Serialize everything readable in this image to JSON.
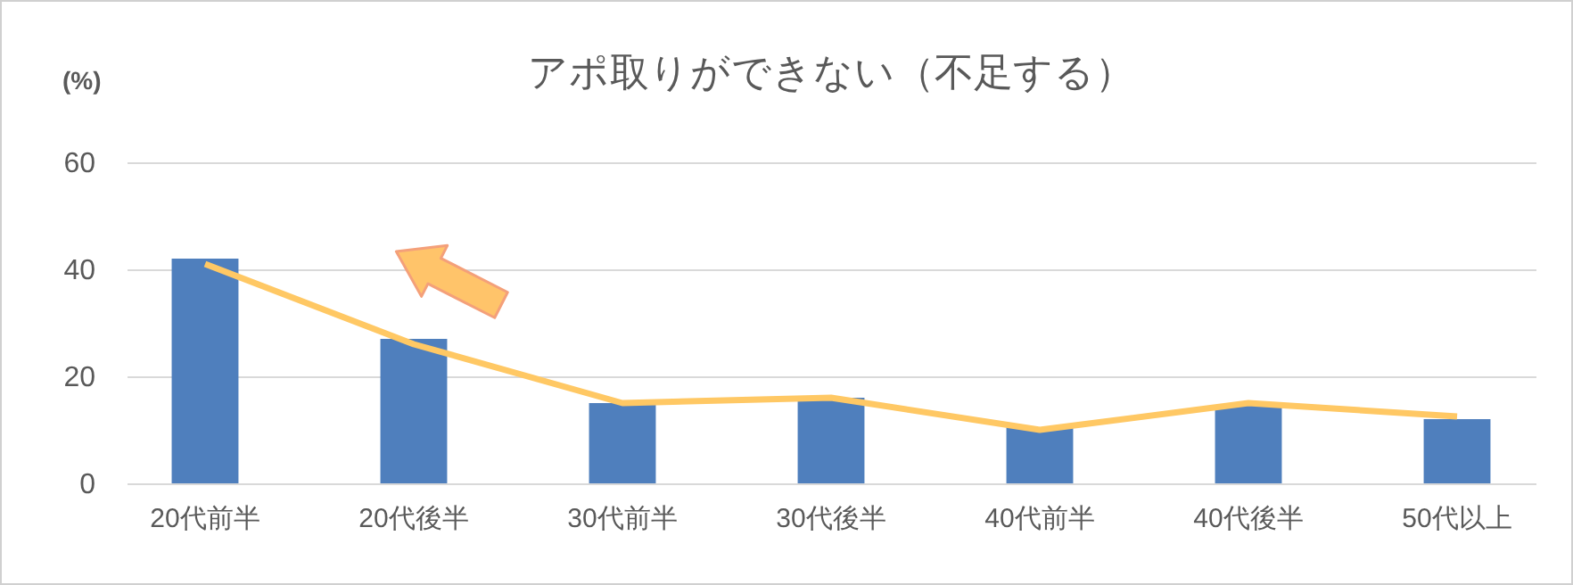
{
  "chart_data": {
    "type": "bar",
    "title": "アポ取りができない（不足する）",
    "ylabel": "(%)",
    "categories": [
      "20代前半",
      "20代後半",
      "30代前半",
      "30代後半",
      "40代前半",
      "40代後半",
      "50代以上"
    ],
    "series": [
      {
        "color": "#4f7fbd",
        "values": [
          42,
          27,
          15,
          16,
          10.5,
          14.5,
          12
        ]
      },
      {
        "type": "line",
        "color": "#ffc864",
        "values": [
          41,
          26,
          15,
          16,
          10,
          15,
          12.5
        ]
      }
    ],
    "ylim": [
      0,
      60
    ],
    "yticks": [
      0,
      20,
      40,
      60
    ],
    "grid": "y"
  }
}
